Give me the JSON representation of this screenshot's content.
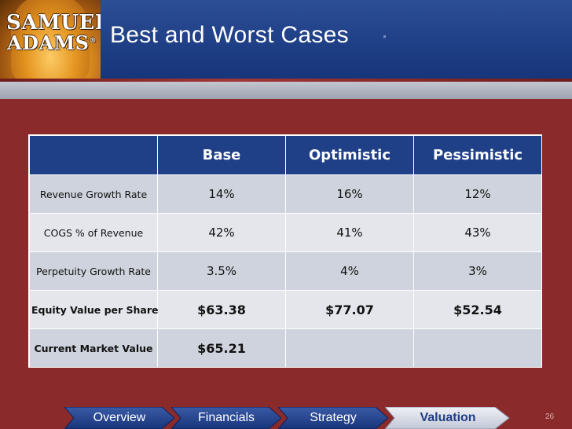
{
  "slide": {
    "logo_line1": "SAMUEL",
    "logo_line2": "ADAMS",
    "logo_reg": "®",
    "title": "Best and Worst Cases",
    "page_number": "26"
  },
  "table": {
    "columns": [
      "",
      "Base",
      "Optimistic",
      "Pessimistic"
    ],
    "rows": [
      {
        "label": "Revenue Growth Rate",
        "base": "14%",
        "optimistic": "16%",
        "pessimistic": "12%"
      },
      {
        "label": "COGS % of Revenue",
        "base": "42%",
        "optimistic": "41%",
        "pessimistic": "43%"
      },
      {
        "label": "Perpetuity Growth Rate",
        "base": "3.5%",
        "optimistic": "4%",
        "pessimistic": "3%"
      },
      {
        "label": "Equity Value per Share",
        "base": "$63.38",
        "optimistic": "$77.07",
        "pessimistic": "$52.54"
      },
      {
        "label": "Current Market Value",
        "base": "$65.21",
        "optimistic": "",
        "pessimistic": ""
      }
    ]
  },
  "nav": {
    "items": [
      {
        "label": "Overview",
        "active": false
      },
      {
        "label": "Financials",
        "active": false
      },
      {
        "label": "Strategy",
        "active": false
      },
      {
        "label": "Valuation",
        "active": true
      }
    ]
  },
  "colors": {
    "header_blue": "#1f3f86",
    "background_red": "#8b2a2a",
    "cell_gray": "#cfd3dd",
    "active_tab": "#d6dae6"
  }
}
